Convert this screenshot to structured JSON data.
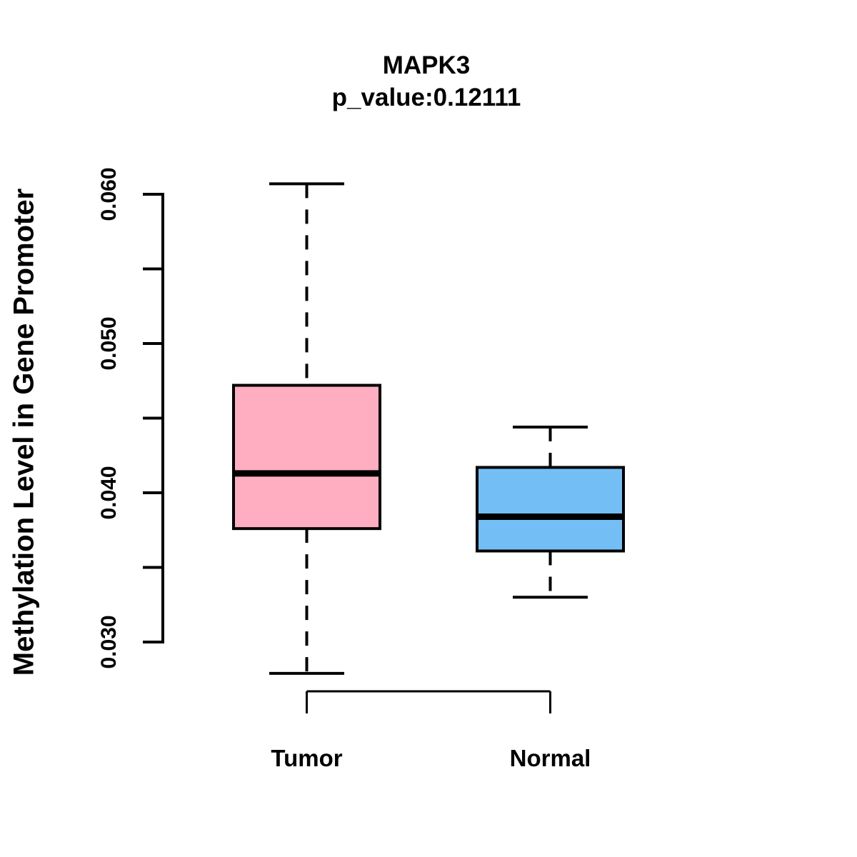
{
  "figure": {
    "background": "#ffffff",
    "text_color": "#000000"
  },
  "chart_data": {
    "type": "boxplot",
    "title": "MAPK3",
    "subtitle": "p_value:0.12111",
    "gene": "MAPK3",
    "p_value": "0.12111",
    "ylabel": "Methylation Level in Gene Promoter",
    "xlabel": "",
    "ylim": [
      0.03,
      0.06
    ],
    "yticks": [
      0.03,
      0.035,
      0.04,
      0.045,
      0.05,
      0.055,
      0.06
    ],
    "ytick_labels": [
      {
        "label": "0.030",
        "value": 0.03
      },
      {
        "label": "0.040",
        "value": 0.04
      },
      {
        "label": "0.050",
        "value": 0.05
      },
      {
        "label": "0.060",
        "value": 0.06
      }
    ],
    "categories": [
      "Tumor",
      "Normal"
    ],
    "series": [
      {
        "name": "Tumor",
        "color": "#ffadc1",
        "lower_whisker": 0.0279,
        "q1": 0.0376,
        "median": 0.0413,
        "q3": 0.0472,
        "upper_whisker": 0.0607
      },
      {
        "name": "Normal",
        "color": "#74bef6",
        "lower_whisker": 0.033,
        "q1": 0.0361,
        "median": 0.0384,
        "q3": 0.0417,
        "upper_whisker": 0.0444
      }
    ],
    "comparison_bracket": {
      "from": "Tumor",
      "to": "Normal"
    },
    "legend": "none",
    "grid": false,
    "line_color": "#000000"
  }
}
